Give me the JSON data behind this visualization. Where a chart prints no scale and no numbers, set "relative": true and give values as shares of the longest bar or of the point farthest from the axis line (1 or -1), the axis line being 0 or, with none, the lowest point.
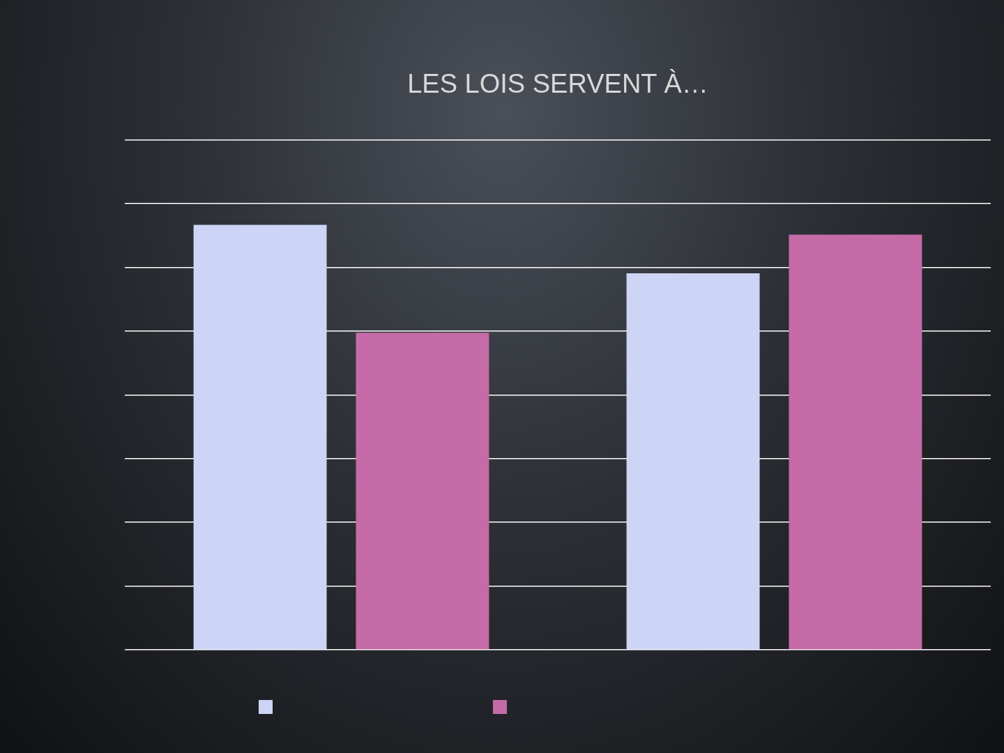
{
  "chart_data": {
    "type": "bar",
    "title": "LES LOIS SERVENT À…",
    "categories": [
      null,
      null
    ],
    "relative": true,
    "grid": "y",
    "series": [
      {
        "color": "#ccd5f5",
        "values": [
          1,
          0.886
        ]
      },
      {
        "color": "#c56ba7",
        "values": [
          0.746,
          0.977
        ]
      }
    ]
  }
}
